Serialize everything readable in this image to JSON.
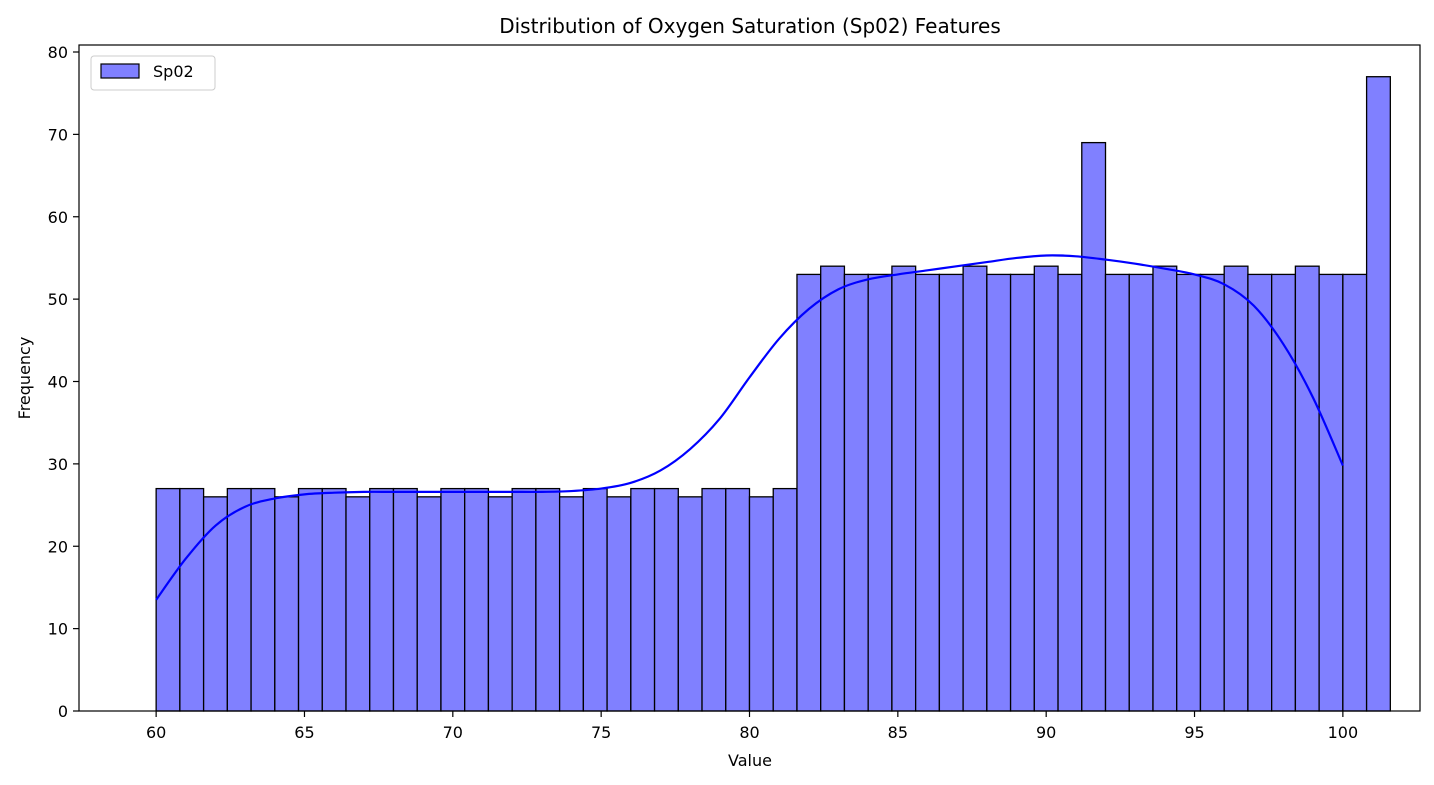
{
  "chart_data": {
    "type": "bar",
    "subtype": "histogram",
    "title": "Distribution of Oxygen Saturation (Sp02) Features",
    "xlabel": "Value",
    "ylabel": "Frequency",
    "xlim": [
      57.4,
      102.6
    ],
    "ylim": [
      0,
      80.85
    ],
    "xticks": [
      "60",
      "65",
      "70",
      "75",
      "80",
      "85",
      "90",
      "95",
      "100"
    ],
    "yticks": [
      "0",
      "10",
      "20",
      "30",
      "40",
      "50",
      "60",
      "70",
      "80"
    ],
    "legend": {
      "position": "top-left",
      "entries": [
        "Sp02"
      ]
    },
    "bin_start": 60,
    "bin_width": 0.8,
    "bar_color": "#8080ff",
    "bar_edge_color": "#000000",
    "kde_color": "#0000ff",
    "series": [
      {
        "name": "Sp02",
        "values": [
          27,
          27,
          26,
          27,
          27,
          26,
          27,
          27,
          26,
          27,
          27,
          26,
          27,
          27,
          26,
          27,
          27,
          26,
          27,
          26,
          27,
          27,
          26,
          27,
          27,
          26,
          27,
          53,
          54,
          53,
          53,
          54,
          53,
          53,
          54,
          53,
          53,
          54,
          53,
          69,
          53,
          53,
          54,
          53,
          53,
          54,
          53,
          53,
          54,
          53,
          53,
          77
        ]
      }
    ],
    "kde": {
      "x": [
        60,
        61,
        62,
        63,
        64,
        65,
        66,
        67,
        68,
        69,
        70,
        71,
        72,
        73,
        74,
        75,
        76,
        77,
        78,
        79,
        80,
        81,
        82,
        83,
        84,
        85,
        86,
        87,
        88,
        89,
        90,
        91,
        92,
        93,
        94,
        95,
        96,
        97,
        98,
        99,
        100
      ],
      "y": [
        13.5,
        18.5,
        22.5,
        24.8,
        25.8,
        26.3,
        26.5,
        26.6,
        26.6,
        26.6,
        26.6,
        26.6,
        26.6,
        26.6,
        26.7,
        27.0,
        27.7,
        29.2,
        31.8,
        35.5,
        40.5,
        45.2,
        48.8,
        51.2,
        52.4,
        53.0,
        53.5,
        54.0,
        54.5,
        55.0,
        55.3,
        55.2,
        54.8,
        54.3,
        53.7,
        53.0,
        51.8,
        49.2,
        44.5,
        38.0,
        29.8
      ]
    }
  }
}
